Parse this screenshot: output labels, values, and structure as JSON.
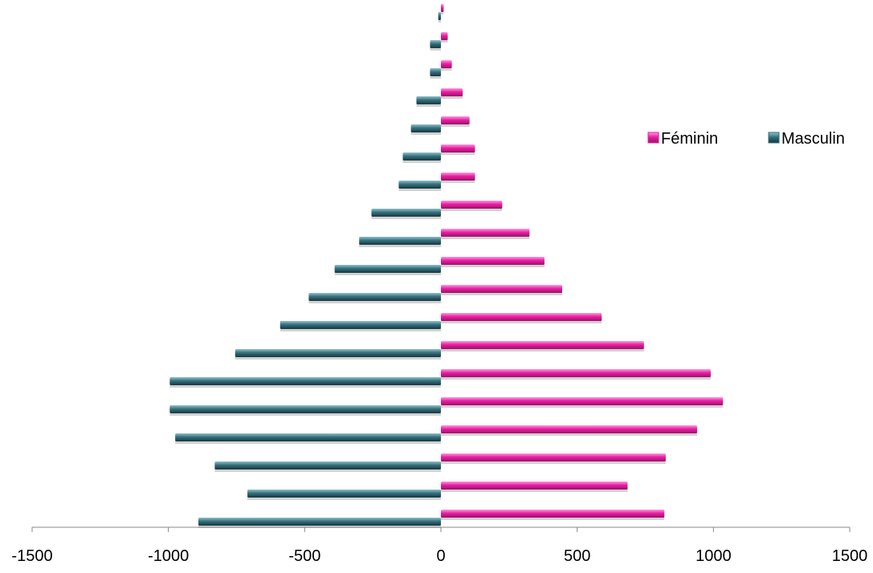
{
  "chart_data": {
    "type": "bar",
    "orientation": "horizontal",
    "layout": "population-pyramid",
    "xlim": [
      -1500,
      1500
    ],
    "xticks": [
      -1500,
      -1000,
      -500,
      0,
      500,
      1000,
      1500
    ],
    "xtick_labels": [
      "-1500",
      "-1000",
      "-500",
      "0",
      "500",
      "1000",
      "1500"
    ],
    "grid": false,
    "legend_position": "right",
    "series": [
      {
        "name": "Féminin",
        "color": "#E0229A",
        "values": [
          820,
          685,
          825,
          940,
          1035,
          990,
          745,
          590,
          445,
          380,
          325,
          225,
          125,
          125,
          105,
          80,
          40,
          25,
          10
        ]
      },
      {
        "name": "Masculin",
        "color": "#2F6E7A",
        "values": [
          -890,
          -710,
          -830,
          -975,
          -995,
          -995,
          -755,
          -590,
          -485,
          -390,
          -300,
          -255,
          -155,
          -140,
          -110,
          -90,
          -40,
          -40,
          -10
        ]
      }
    ]
  }
}
